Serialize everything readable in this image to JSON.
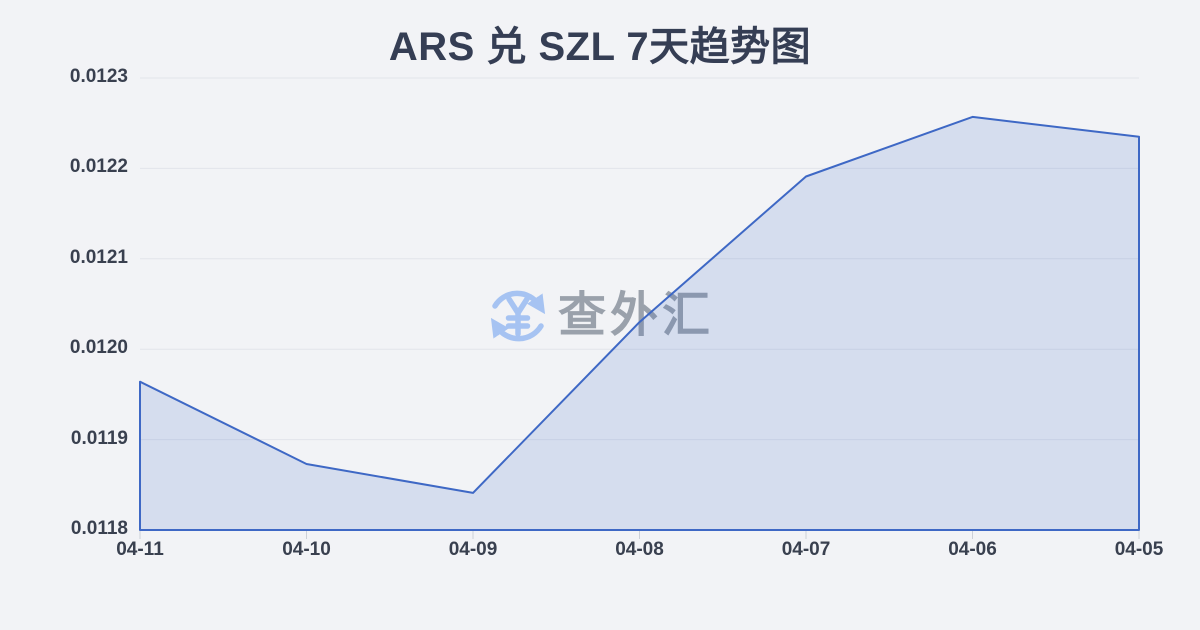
{
  "page": {
    "background_color": "#f2f3f6"
  },
  "watermark": {
    "text": "查外汇",
    "icon": "currency-exchange-yen-icon",
    "icon_color": "#a6c3f2",
    "text_color": "#9aa1ab"
  },
  "chart_data": {
    "type": "area",
    "title": "ARS 兑 SZL 7天趋势图",
    "categories": [
      "04-11",
      "04-10",
      "04-09",
      "04-08",
      "04-07",
      "04-06",
      "04-05"
    ],
    "values": [
      0.011964,
      0.011873,
      0.011841,
      0.01203,
      0.012191,
      0.012257,
      0.012235
    ],
    "series_name": "ARS/SZL",
    "xlabel": "",
    "ylabel": "",
    "ylim": [
      0.0118,
      0.0123
    ],
    "ytick_labels": [
      "0.0118",
      "0.0119",
      "0.0120",
      "0.0121",
      "0.0122",
      "0.0123"
    ],
    "grid": true,
    "legend": "none",
    "colors": {
      "line": "#3e68c5",
      "fill": "rgba(62,104,197,0.16)",
      "grid": "#e2e4ea",
      "tick": "#ccd0d8",
      "axis_text": "#39404f",
      "title_text": "#353e54"
    }
  }
}
